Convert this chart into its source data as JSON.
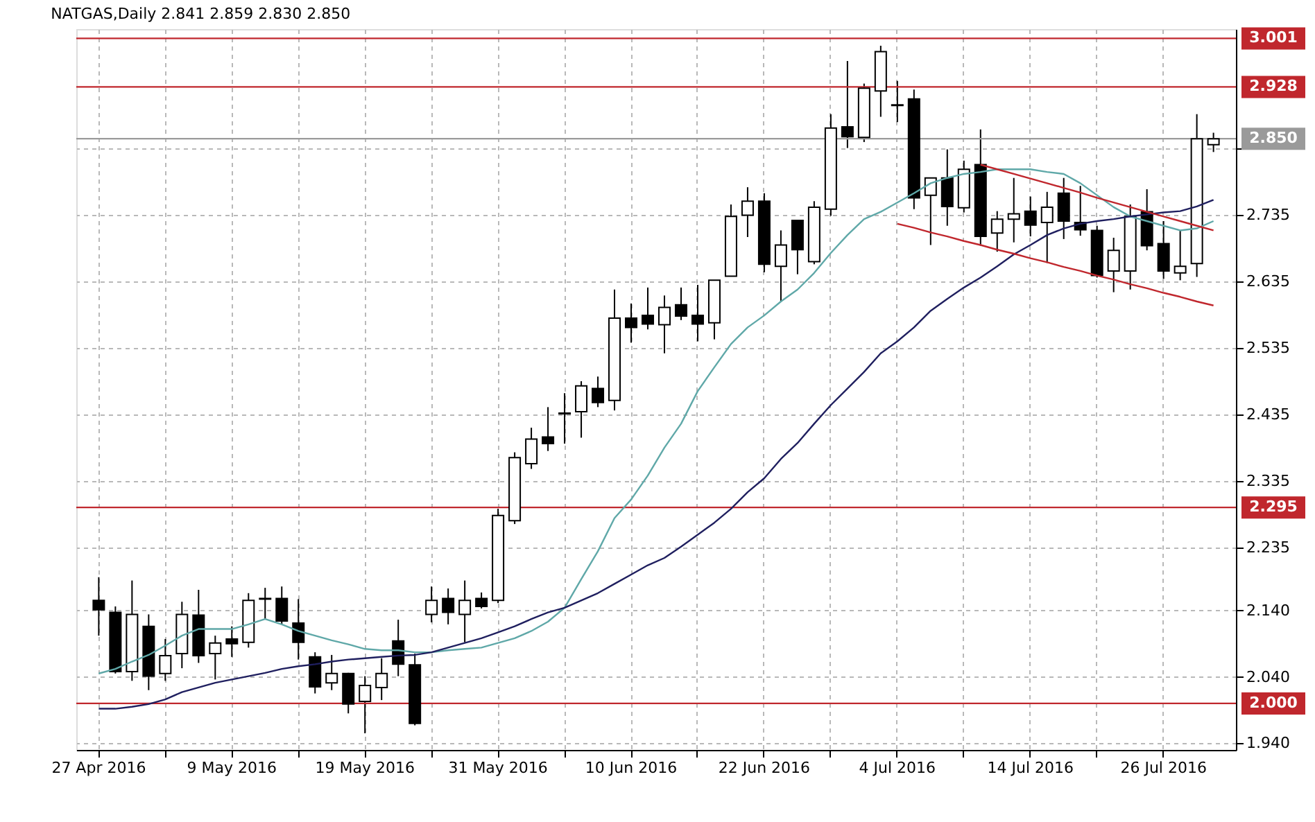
{
  "chart_data": {
    "type": "candlestick",
    "title": "NATGAS,Daily  2.841 2.859 2.830 2.850",
    "categories": [
      "27 Apr 2016",
      null,
      null,
      null,
      null,
      null,
      null,
      null,
      "9 May 2016",
      null,
      null,
      null,
      null,
      null,
      null,
      null,
      "19 May 2016",
      null,
      null,
      null,
      null,
      null,
      null,
      null,
      "31 May 2016",
      null,
      null,
      null,
      null,
      null,
      null,
      null,
      "10 Jun 2016",
      null,
      null,
      null,
      null,
      null,
      null,
      null,
      "22 Jun 2016",
      null,
      null,
      null,
      null,
      null,
      null,
      null,
      "4 Jul 2016",
      null,
      null,
      null,
      null,
      null,
      null,
      null,
      "14 Jul 2016",
      null,
      null,
      null,
      null,
      null,
      null,
      null,
      "26 Jul 2016",
      null,
      null,
      null
    ],
    "ohlc": [
      [
        2.155,
        2.19,
        2.102,
        2.141
      ],
      [
        2.137,
        2.146,
        2.045,
        2.048
      ],
      [
        2.048,
        2.185,
        2.034,
        2.134
      ],
      [
        2.116,
        2.134,
        2.02,
        2.041
      ],
      [
        2.045,
        2.097,
        2.034,
        2.072
      ],
      [
        2.075,
        2.153,
        2.053,
        2.134
      ],
      [
        2.133,
        2.171,
        2.061,
        2.072
      ],
      [
        2.075,
        2.102,
        2.036,
        2.091
      ],
      [
        2.097,
        2.116,
        2.07,
        2.09
      ],
      [
        2.092,
        2.166,
        2.084,
        2.155
      ],
      [
        2.157,
        2.174,
        2.127,
        2.158
      ],
      [
        2.158,
        2.176,
        2.119,
        2.124
      ],
      [
        2.121,
        2.157,
        2.066,
        2.092
      ],
      [
        2.07,
        2.077,
        2.015,
        2.025
      ],
      [
        2.031,
        2.073,
        2.02,
        2.045
      ],
      [
        2.045,
        2.046,
        1.985,
        1.999
      ],
      [
        2.003,
        2.041,
        1.955,
        2.027
      ],
      [
        2.024,
        2.068,
        2.005,
        2.045
      ],
      [
        2.094,
        2.126,
        2.041,
        2.059
      ],
      [
        2.058,
        2.075,
        1.967,
        1.97
      ],
      [
        2.134,
        2.176,
        2.122,
        2.155
      ],
      [
        2.158,
        2.173,
        2.119,
        2.137
      ],
      [
        2.134,
        2.185,
        2.092,
        2.155
      ],
      [
        2.158,
        2.167,
        2.143,
        2.146
      ],
      [
        2.155,
        2.293,
        2.151,
        2.283
      ],
      [
        2.275,
        2.378,
        2.27,
        2.37
      ],
      [
        2.361,
        2.415,
        2.353,
        2.398
      ],
      [
        2.401,
        2.446,
        2.38,
        2.391
      ],
      [
        2.436,
        2.467,
        2.391,
        2.437
      ],
      [
        2.439,
        2.485,
        2.4,
        2.478
      ],
      [
        2.474,
        2.492,
        2.446,
        2.453
      ],
      [
        2.456,
        2.623,
        2.441,
        2.58
      ],
      [
        2.58,
        2.602,
        2.543,
        2.566
      ],
      [
        2.584,
        2.626,
        2.563,
        2.571
      ],
      [
        2.57,
        2.614,
        2.527,
        2.596
      ],
      [
        2.6,
        2.626,
        2.577,
        2.583
      ],
      [
        2.584,
        2.63,
        2.545,
        2.571
      ],
      [
        2.573,
        2.637,
        2.548,
        2.637
      ],
      [
        2.643,
        2.751,
        2.643,
        2.733
      ],
      [
        2.735,
        2.777,
        2.702,
        2.756
      ],
      [
        2.756,
        2.768,
        2.649,
        2.661
      ],
      [
        2.658,
        2.712,
        2.604,
        2.69
      ],
      [
        2.727,
        2.727,
        2.646,
        2.683
      ],
      [
        2.665,
        2.756,
        2.661,
        2.747
      ],
      [
        2.744,
        2.887,
        2.734,
        2.866
      ],
      [
        2.868,
        2.967,
        2.836,
        2.853
      ],
      [
        2.852,
        2.933,
        2.845,
        2.926
      ],
      [
        2.922,
        2.99,
        2.883,
        2.981
      ],
      [
        2.901,
        2.937,
        2.875,
        2.9
      ],
      [
        2.91,
        2.924,
        2.744,
        2.761
      ],
      [
        2.765,
        2.791,
        2.69,
        2.791
      ],
      [
        2.791,
        2.834,
        2.719,
        2.748
      ],
      [
        2.746,
        2.817,
        2.739,
        2.804
      ],
      [
        2.811,
        2.864,
        2.689,
        2.703
      ],
      [
        2.708,
        2.741,
        2.68,
        2.729
      ],
      [
        2.729,
        2.791,
        2.694,
        2.737
      ],
      [
        2.741,
        2.763,
        2.703,
        2.72
      ],
      [
        2.724,
        2.77,
        2.663,
        2.747
      ],
      [
        2.768,
        2.791,
        2.699,
        2.726
      ],
      [
        2.724,
        2.779,
        2.704,
        2.713
      ],
      [
        2.712,
        2.719,
        2.641,
        2.644
      ],
      [
        2.651,
        2.701,
        2.619,
        2.682
      ],
      [
        2.651,
        2.751,
        2.623,
        2.733
      ],
      [
        2.74,
        2.774,
        2.682,
        2.689
      ],
      [
        2.692,
        2.726,
        2.639,
        2.651
      ],
      [
        2.648,
        2.712,
        2.637,
        2.658
      ],
      [
        2.662,
        2.887,
        2.642,
        2.85
      ],
      [
        2.841,
        2.859,
        2.83,
        2.85
      ]
    ],
    "series": [
      {
        "type": "line",
        "color": "#5fa8a8",
        "values": [
          2.045,
          2.052,
          2.063,
          2.073,
          2.087,
          2.102,
          2.112,
          2.112,
          2.112,
          2.119,
          2.127,
          2.119,
          2.109,
          2.102,
          2.095,
          2.089,
          2.082,
          2.08,
          2.08,
          2.077,
          2.077,
          2.08,
          2.082,
          2.084,
          2.091,
          2.098,
          2.109,
          2.123,
          2.144,
          2.187,
          2.229,
          2.279,
          2.307,
          2.343,
          2.385,
          2.421,
          2.47,
          2.506,
          2.541,
          2.566,
          2.584,
          2.605,
          2.623,
          2.648,
          2.678,
          2.705,
          2.729,
          2.74,
          2.754,
          2.768,
          2.783,
          2.791,
          2.797,
          2.8,
          2.804,
          2.804,
          2.804,
          2.8,
          2.797,
          2.783,
          2.765,
          2.747,
          2.733,
          2.726,
          2.719,
          2.712,
          2.715,
          2.726
        ]
      },
      {
        "type": "line",
        "color": "#1f1f5f",
        "values": [
          1.992,
          1.992,
          1.995,
          1.999,
          2.006,
          2.017,
          2.024,
          2.031,
          2.036,
          2.041,
          2.046,
          2.052,
          2.056,
          2.059,
          2.063,
          2.066,
          2.068,
          2.07,
          2.072,
          2.073,
          2.077,
          2.084,
          2.091,
          2.098,
          2.107,
          2.116,
          2.127,
          2.137,
          2.144,
          2.155,
          2.166,
          2.18,
          2.194,
          2.208,
          2.219,
          2.236,
          2.254,
          2.272,
          2.293,
          2.318,
          2.339,
          2.368,
          2.392,
          2.421,
          2.449,
          2.474,
          2.499,
          2.527,
          2.545,
          2.566,
          2.591,
          2.609,
          2.626,
          2.641,
          2.658,
          2.676,
          2.69,
          2.705,
          2.715,
          2.722,
          2.726,
          2.729,
          2.733,
          2.736,
          2.739,
          2.741,
          2.748,
          2.758
        ]
      },
      {
        "type": "line",
        "color": "#c0272d",
        "values": [
          null,
          null,
          null,
          null,
          null,
          null,
          null,
          null,
          null,
          null,
          null,
          null,
          null,
          null,
          null,
          null,
          null,
          null,
          null,
          null,
          null,
          null,
          null,
          null,
          null,
          null,
          null,
          null,
          null,
          null,
          null,
          null,
          null,
          null,
          null,
          null,
          null,
          null,
          null,
          null,
          null,
          null,
          null,
          null,
          null,
          null,
          null,
          null,
          null,
          null,
          null,
          null,
          null,
          2.811,
          2.804,
          2.797,
          2.79,
          2.783,
          2.776,
          2.769,
          2.761,
          2.754,
          2.747,
          2.74,
          2.733,
          2.726,
          2.719,
          2.712
        ]
      },
      {
        "type": "line",
        "color": "#c0272d",
        "values": [
          null,
          null,
          null,
          null,
          null,
          null,
          null,
          null,
          null,
          null,
          null,
          null,
          null,
          null,
          null,
          null,
          null,
          null,
          null,
          null,
          null,
          null,
          null,
          null,
          null,
          null,
          null,
          null,
          null,
          null,
          null,
          null,
          null,
          null,
          null,
          null,
          null,
          null,
          null,
          null,
          null,
          null,
          null,
          null,
          null,
          null,
          null,
          null,
          2.722,
          2.716,
          2.709,
          2.703,
          2.696,
          2.69,
          2.683,
          2.677,
          2.67,
          2.664,
          2.657,
          2.651,
          2.644,
          2.638,
          2.631,
          2.625,
          2.618,
          2.612,
          2.605,
          2.599
        ]
      }
    ],
    "ylim": [
      1.93,
      3.015
    ],
    "yticks": [
      {
        "value": 2.835,
        "label": null
      },
      {
        "value": 2.735,
        "label": "2.735"
      },
      {
        "value": 2.635,
        "label": "2.635"
      },
      {
        "value": 2.535,
        "label": "2.535"
      },
      {
        "value": 2.435,
        "label": "2.435"
      },
      {
        "value": 2.335,
        "label": "2.335"
      },
      {
        "value": 2.235,
        "label": "2.235"
      },
      {
        "value": 2.14,
        "label": "2.140"
      },
      {
        "value": 2.04,
        "label": "2.040"
      },
      {
        "value": 1.94,
        "label": "1.940"
      }
    ],
    "ref_lines": [
      {
        "axis": "y",
        "value": 3.001,
        "label": "3.001",
        "color": "#c0272d"
      },
      {
        "axis": "y",
        "value": 2.928,
        "label": "2.928",
        "color": "#c0272d"
      },
      {
        "axis": "y",
        "value": 2.85,
        "label": "2.850",
        "color": "#9a9a9a"
      },
      {
        "axis": "y",
        "value": 2.295,
        "label": "2.295",
        "color": "#c0272d"
      },
      {
        "axis": "y",
        "value": 2.0,
        "label": "2.000",
        "color": "#c0272d"
      }
    ],
    "grid": true
  }
}
